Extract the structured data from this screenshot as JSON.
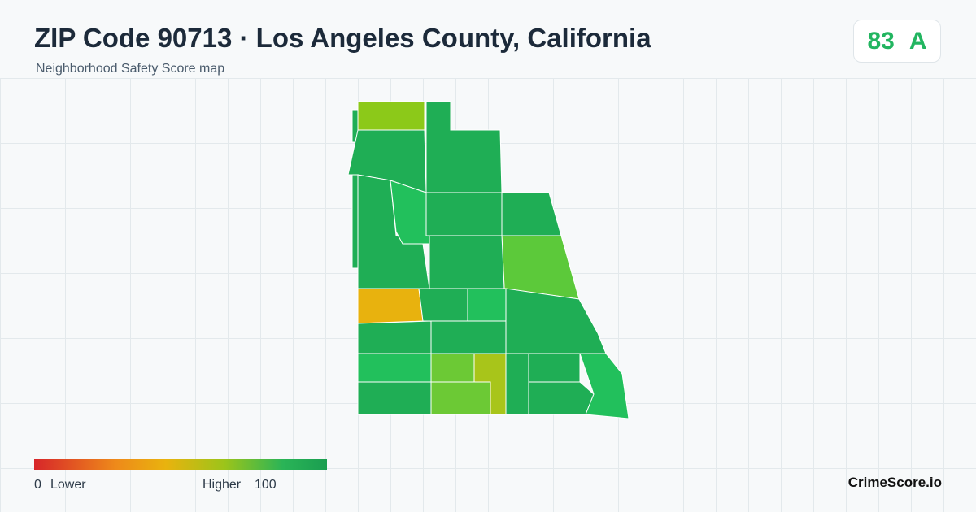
{
  "header": {
    "title": "ZIP Code 90713 · Los Angeles County, California",
    "subtitle": "Neighborhood Safety Score map"
  },
  "score": {
    "value": 83,
    "grade": "A"
  },
  "legend": {
    "min": 0,
    "low_label": "Lower",
    "high_label": "Higher",
    "max": 100
  },
  "footer": {
    "brand": "CrimeScore.io"
  }
}
